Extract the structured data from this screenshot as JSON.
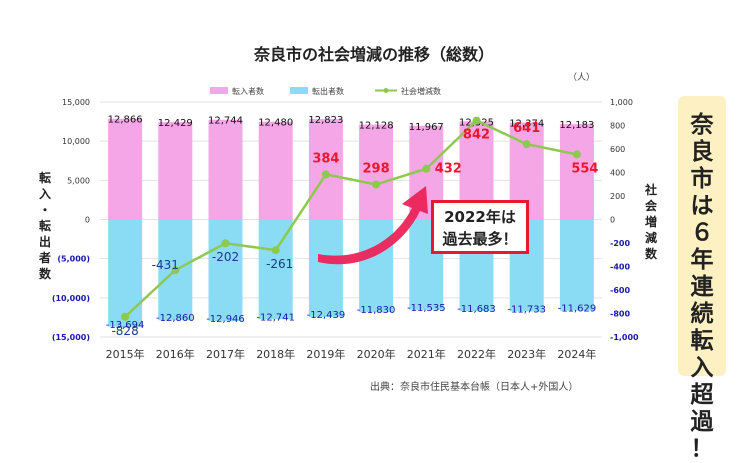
{
  "chart_data": {
    "type": "bar+line",
    "title": "奈良市の社会増減の推移（総数）",
    "unit_right": "（人）",
    "categories": [
      "2015年",
      "2016年",
      "2017年",
      "2018年",
      "2019年",
      "2020年",
      "2021年",
      "2022年",
      "2023年",
      "2024年"
    ],
    "legend": [
      "転入者数",
      "転出者数",
      "社会増減数"
    ],
    "series": [
      {
        "name": "転入者数",
        "color": "#f4a6e6",
        "axis": "left",
        "values": [
          12866,
          12429,
          12744,
          12480,
          12823,
          12128,
          11967,
          12525,
          12374,
          12183
        ],
        "labels": [
          "12,866",
          "12,429",
          "12,744",
          "12,480",
          "12,823",
          "12,128",
          "11,967",
          "12,525",
          "12,374",
          "12,183"
        ]
      },
      {
        "name": "転出者数",
        "color": "#89dcf4",
        "axis": "left",
        "values": [
          -13694,
          -12860,
          -12946,
          -12741,
          -12439,
          -11830,
          -11535,
          -11683,
          -11733,
          -11629
        ],
        "labels": [
          "-13,694",
          "-12,860",
          "-12,946",
          "-12,741",
          "-12,439",
          "-11,830",
          "-11,535",
          "-11,683",
          "-11,733",
          "-11,629"
        ]
      },
      {
        "name": "社会増減数",
        "color": "#8ec94f",
        "axis": "right",
        "values": [
          -828,
          -431,
          -202,
          -261,
          384,
          298,
          432,
          842,
          641,
          554
        ],
        "labels": [
          "-828",
          "-431",
          "-202",
          "-261",
          "384",
          "298",
          "432",
          "842",
          "641",
          "554"
        ]
      }
    ],
    "ylabel_left": "転入・転出者数",
    "ylabel_right": "社会増減数",
    "ylim_left": [
      -15000,
      15000
    ],
    "ylim_right": [
      -1000,
      1000
    ],
    "yticks_left": [
      "15,000",
      "10,000",
      "5,000",
      "0",
      "(5,000)",
      "(10,000)",
      "(15,000)"
    ],
    "yticks_right": [
      "1,000",
      "800",
      "600",
      "400",
      "200",
      "0",
      "-200",
      "-400",
      "-600",
      "-800",
      "-1,000"
    ],
    "grid": true,
    "legend_position": "top",
    "source": "出典：奈良市住民基本台帳（日本人+外国人）",
    "annotation": "2022年は\n過去最多！",
    "annotation_lines": [
      "2022年は",
      "過去最多！"
    ],
    "callout": "奈良市は６年連続転入超過！"
  },
  "colors": {
    "positive_label": "#e8182f",
    "negative_label": "#1a3a8a",
    "outflow_label": "#1a1aa6",
    "arrow": "#ec2359",
    "callout_bg": "#fdf1c4"
  }
}
